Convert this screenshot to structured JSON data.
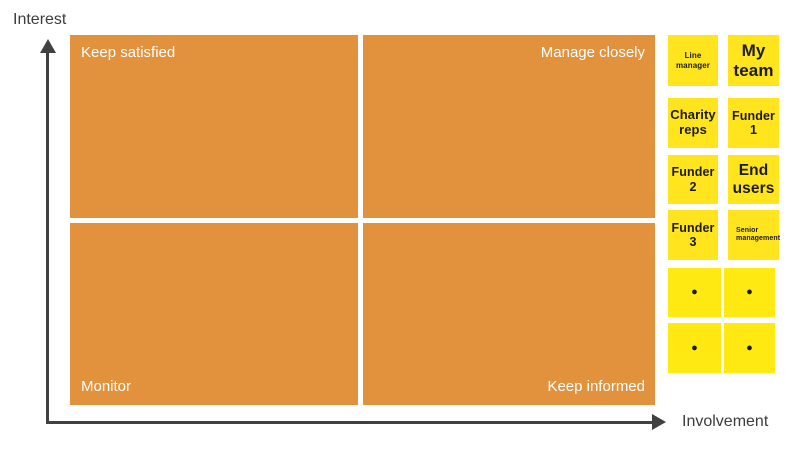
{
  "axes": {
    "y_label": "Interest",
    "x_label": "Involvement"
  },
  "quadrants": {
    "top_left": "Keep satisfied",
    "top_right": "Manage closely",
    "bottom_left": "Monitor",
    "bottom_right": "Keep informed"
  },
  "notes": [
    {
      "label": "Line manager"
    },
    {
      "label": "My team"
    },
    {
      "label": "Charity reps"
    },
    {
      "label": "Funder 1"
    },
    {
      "label": "Funder 2"
    },
    {
      "label": "End users"
    },
    {
      "label": "Funder 3"
    },
    {
      "label": "Senior management"
    },
    {
      "label": "●"
    },
    {
      "label": "●"
    },
    {
      "label": "●"
    },
    {
      "label": "●"
    }
  ],
  "colors": {
    "quadrant_fill": "#e2923c",
    "note_fill": "#ffe41e",
    "note_dot_fill": "#ffe912",
    "axis": "#414141",
    "axis_text": "#3c3c3c",
    "quadrant_text": "#ffffff",
    "note_text": "#1b1b1b"
  }
}
